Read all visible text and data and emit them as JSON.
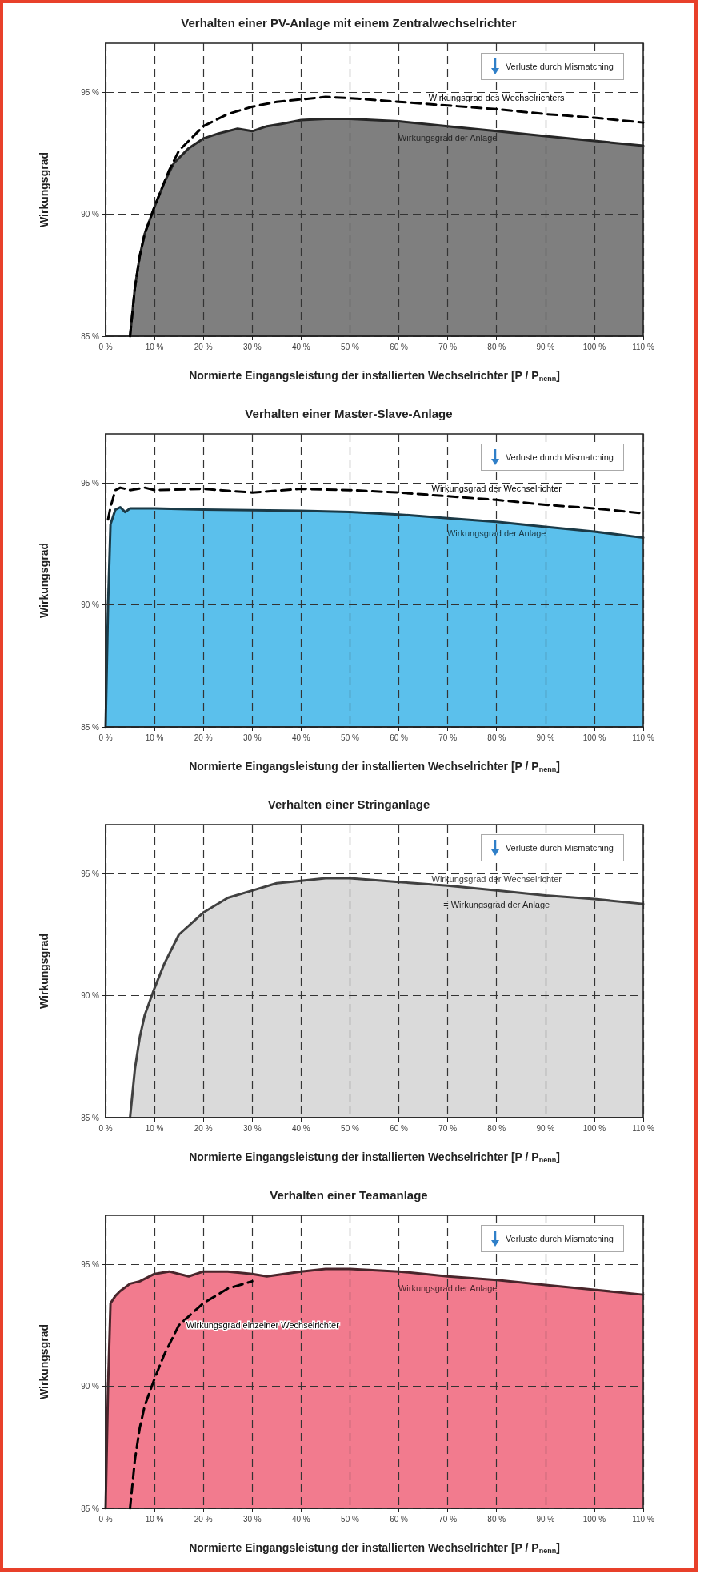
{
  "chart_data": [
    {
      "type": "line",
      "title": "Verhalten einer PV-Anlage mit einem Zentralwechselrichter",
      "xlabel": "Normierte Eingangsleistung der installierten Wechselrichter [P / P$_{nenn}$]",
      "ylabel": "Wirkungsgrad",
      "annotations": [
        "Verluste durch Mismatching"
      ],
      "xlim": [
        0,
        110
      ],
      "ylim": [
        85,
        97
      ],
      "xticks": [
        {
          "value": 0,
          "label": "0 %"
        },
        {
          "value": 10,
          "label": "10 %"
        },
        {
          "value": 20,
          "label": "20 %"
        },
        {
          "value": 30,
          "label": "30 %"
        },
        {
          "value": 40,
          "label": "40 %"
        },
        {
          "value": 50,
          "label": "50 %"
        },
        {
          "value": 60,
          "label": "60 %"
        },
        {
          "value": 70,
          "label": "70 %"
        },
        {
          "value": 80,
          "label": "80 %"
        },
        {
          "value": 90,
          "label": "90 %"
        },
        {
          "value": 100,
          "label": "100 %"
        },
        {
          "value": 110,
          "label": "110 %"
        }
      ],
      "yticks": [
        {
          "value": 85,
          "label": "85 %"
        },
        {
          "value": 90,
          "label": "90 %"
        },
        {
          "value": 95,
          "label": "95 %"
        }
      ],
      "grid": true,
      "marker": "none",
      "series": [
        {
          "name": "Wirkungsgrad der Anlage",
          "type": "area",
          "color": "#7f7f7f",
          "x": [
            5,
            6,
            7,
            8,
            10,
            12,
            14,
            17,
            20,
            23,
            27,
            30,
            33,
            36,
            40,
            45,
            50,
            60,
            70,
            80,
            90,
            100,
            110
          ],
          "values": [
            85,
            87,
            88.3,
            89.2,
            90.3,
            91.3,
            92.1,
            92.7,
            93.1,
            93.3,
            93.5,
            93.4,
            93.6,
            93.7,
            93.85,
            93.9,
            93.9,
            93.8,
            93.6,
            93.4,
            93.2,
            93.0,
            92.8
          ]
        },
        {
          "name": "Wirkungsgrad des Wechselrichters",
          "type": "line",
          "color": "#000000",
          "line_style": "dashed",
          "x": [
            5,
            6,
            7,
            8,
            10,
            13,
            15,
            20,
            25,
            30,
            35,
            40,
            45,
            50,
            60,
            70,
            80,
            90,
            100,
            110
          ],
          "values": [
            85,
            87,
            88.3,
            89.2,
            90.3,
            91.8,
            92.6,
            93.6,
            94.1,
            94.4,
            94.6,
            94.7,
            94.8,
            94.75,
            94.6,
            94.45,
            94.3,
            94.1,
            93.95,
            93.75
          ]
        }
      ]
    },
    {
      "type": "line",
      "title": "Verhalten einer Master-Slave-Anlage",
      "xlabel": "Normierte Eingangsleistung der installierten Wechselrichter [P / P$_{nenn}$]",
      "ylabel": "Wirkungsgrad",
      "annotations": [
        "Verluste durch Mismatching"
      ],
      "xlim": [
        0,
        110
      ],
      "ylim": [
        85,
        97
      ],
      "xticks": [
        {
          "value": 0,
          "label": "0 %"
        },
        {
          "value": 10,
          "label": "10 %"
        },
        {
          "value": 20,
          "label": "20 %"
        },
        {
          "value": 30,
          "label": "30 %"
        },
        {
          "value": 40,
          "label": "40 %"
        },
        {
          "value": 50,
          "label": "50 %"
        },
        {
          "value": 60,
          "label": "60 %"
        },
        {
          "value": 70,
          "label": "70 %"
        },
        {
          "value": 80,
          "label": "80 %"
        },
        {
          "value": 90,
          "label": "90 %"
        },
        {
          "value": 100,
          "label": "100 %"
        },
        {
          "value": 110,
          "label": "110 %"
        }
      ],
      "yticks": [
        {
          "value": 85,
          "label": "85 %"
        },
        {
          "value": 90,
          "label": "90 %"
        },
        {
          "value": 95,
          "label": "95 %"
        }
      ],
      "grid": true,
      "marker": "none",
      "series": [
        {
          "name": "Wirkungsgrad der Anlage",
          "type": "area",
          "color": "#5bc0ec",
          "x": [
            0,
            0.5,
            1,
            2,
            3,
            4,
            5,
            10,
            20,
            40,
            50,
            60,
            70,
            80,
            90,
            100,
            110
          ],
          "values": [
            85,
            90,
            93.3,
            93.9,
            94,
            93.8,
            93.95,
            93.95,
            93.9,
            93.85,
            93.8,
            93.7,
            93.55,
            93.4,
            93.2,
            93.0,
            92.75
          ]
        },
        {
          "name": "Wirkungsgrad der Wechselrichter",
          "type": "line",
          "color": "#000000",
          "line_style": "dashed",
          "x": [
            0.5,
            1,
            2,
            3,
            5,
            8,
            10,
            20,
            30,
            40,
            50,
            60,
            70,
            80,
            90,
            100,
            110
          ],
          "values": [
            93.5,
            94,
            94.7,
            94.8,
            94.7,
            94.8,
            94.7,
            94.75,
            94.6,
            94.75,
            94.7,
            94.6,
            94.45,
            94.3,
            94.1,
            93.95,
            93.75
          ]
        }
      ]
    },
    {
      "type": "line",
      "title": "Verhalten einer Stringanlage",
      "xlabel": "Normierte Eingangsleistung der installierten Wechselrichter [P / P$_{nenn}$]",
      "ylabel": "Wirkungsgrad",
      "annotations": [
        "Verluste durch Mismatching",
        {
          "text": "= Wirkungsgrad der Anlage",
          "x": 80,
          "y": 94.3
        }
      ],
      "xlim": [
        0,
        110
      ],
      "ylim": [
        85,
        97
      ],
      "xticks": [
        {
          "value": 0,
          "label": "0 %"
        },
        {
          "value": 10,
          "label": "10 %"
        },
        {
          "value": 20,
          "label": "20 %"
        },
        {
          "value": 30,
          "label": "30 %"
        },
        {
          "value": 40,
          "label": "40 %"
        },
        {
          "value": 50,
          "label": "50 %"
        },
        {
          "value": 60,
          "label": "60 %"
        },
        {
          "value": 70,
          "label": "70 %"
        },
        {
          "value": 80,
          "label": "80 %"
        },
        {
          "value": 90,
          "label": "90 %"
        },
        {
          "value": 100,
          "label": "100 %"
        },
        {
          "value": 110,
          "label": "110 %"
        }
      ],
      "yticks": [
        {
          "value": 85,
          "label": "85 %"
        },
        {
          "value": 90,
          "label": "90 %"
        },
        {
          "value": 95,
          "label": "95 %"
        }
      ],
      "grid": true,
      "marker": "none",
      "series": [
        {
          "name": "Wirkungsgrad der Wechselrichter",
          "type": "area",
          "color": "#dadada",
          "x": [
            5,
            6,
            7,
            8,
            10,
            12,
            15,
            20,
            25,
            30,
            35,
            40,
            45,
            50,
            60,
            70,
            80,
            90,
            100,
            110
          ],
          "values": [
            85,
            87,
            88.3,
            89.2,
            90.3,
            91.3,
            92.5,
            93.4,
            94,
            94.3,
            94.6,
            94.7,
            94.8,
            94.8,
            94.65,
            94.5,
            94.3,
            94.1,
            93.95,
            93.75
          ]
        }
      ]
    },
    {
      "type": "line",
      "title": "Verhalten einer Teamanlage",
      "xlabel": "Normierte Eingangsleistung der installierten Wechselrichter [P / P$_{nenn}$]",
      "ylabel": "Wirkungsgrad",
      "annotations": [
        "Verluste durch Mismatching"
      ],
      "xlim": [
        0,
        110
      ],
      "ylim": [
        85,
        97
      ],
      "xticks": [
        {
          "value": 0,
          "label": "0 %"
        },
        {
          "value": 10,
          "label": "10 %"
        },
        {
          "value": 20,
          "label": "20 %"
        },
        {
          "value": 30,
          "label": "30 %"
        },
        {
          "value": 40,
          "label": "40 %"
        },
        {
          "value": 50,
          "label": "50 %"
        },
        {
          "value": 60,
          "label": "60 %"
        },
        {
          "value": 70,
          "label": "70 %"
        },
        {
          "value": 80,
          "label": "80 %"
        },
        {
          "value": 90,
          "label": "90 %"
        },
        {
          "value": 100,
          "label": "100 %"
        },
        {
          "value": 110,
          "label": "110 %"
        }
      ],
      "yticks": [
        {
          "value": 85,
          "label": "85 %"
        },
        {
          "value": 90,
          "label": "90 %"
        },
        {
          "value": 95,
          "label": "95 %"
        }
      ],
      "grid": true,
      "marker": "none",
      "series": [
        {
          "name": "Wirkungsgrad der Anlage",
          "type": "area",
          "color": "#f27b8e",
          "x": [
            0,
            0.5,
            1,
            2,
            3,
            5,
            7,
            10,
            13,
            17,
            20,
            25,
            30,
            33,
            40,
            45,
            50,
            60,
            70,
            80,
            90,
            100,
            110
          ],
          "values": [
            85,
            90,
            93.4,
            93.7,
            93.9,
            94.2,
            94.3,
            94.6,
            94.7,
            94.5,
            94.7,
            94.7,
            94.6,
            94.5,
            94.7,
            94.8,
            94.8,
            94.7,
            94.5,
            94.35,
            94.15,
            93.95,
            93.75
          ]
        },
        {
          "name": "Wirkungsgrad einzelner Wechselrichter",
          "type": "line",
          "color": "#000000",
          "line_style": "dashed",
          "x": [
            5,
            6,
            7,
            8,
            10,
            12,
            15,
            20,
            25,
            30
          ],
          "values": [
            85,
            87,
            88.3,
            89.2,
            90.3,
            91.3,
            92.5,
            93.4,
            94,
            94.3
          ]
        }
      ]
    }
  ]
}
